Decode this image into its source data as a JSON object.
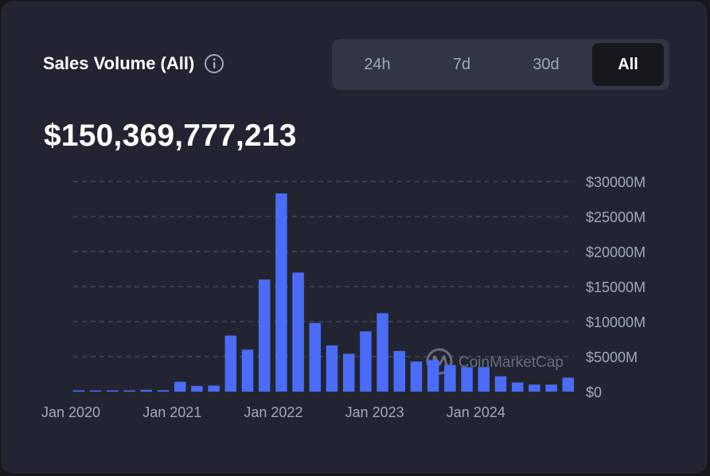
{
  "header": {
    "title": "Sales Volume (All)",
    "info_icon": "info-icon"
  },
  "tabs": [
    {
      "label": "24h",
      "active": false
    },
    {
      "label": "7d",
      "active": false
    },
    {
      "label": "30d",
      "active": false
    },
    {
      "label": "All",
      "active": true
    }
  ],
  "total_value": "$150,369,777,213",
  "watermark": "CoinMarketCap",
  "colors": {
    "bar": "#4a6cf7",
    "grid": "#4a4e5e",
    "card": "#222531"
  },
  "chart_data": {
    "type": "bar",
    "title": "Sales Volume (All)",
    "xlabel": "",
    "ylabel": "",
    "ylim": [
      0,
      30000
    ],
    "y_unit": "M",
    "y_ticks": [
      0,
      5000,
      10000,
      15000,
      20000,
      25000,
      30000
    ],
    "y_tick_labels": [
      "$0",
      "$5000M",
      "$10000M",
      "$15000M",
      "$20000M",
      "$25000M",
      "$30000M"
    ],
    "x_tick_labels": [
      {
        "label": "Jan 2020",
        "category_index": 0
      },
      {
        "label": "Jan 2021",
        "category_index": 6
      },
      {
        "label": "Jan 2022",
        "category_index": 12
      },
      {
        "label": "Jan 2023",
        "category_index": 18
      },
      {
        "label": "Jan 2024",
        "category_index": 24
      }
    ],
    "categories": [
      "2020-01",
      "2020-03",
      "2020-05",
      "2020-07",
      "2020-09",
      "2020-11",
      "2021-01",
      "2021-03",
      "2021-05",
      "2021-07",
      "2021-09",
      "2021-11",
      "2022-01",
      "2022-03",
      "2022-05",
      "2022-07",
      "2022-09",
      "2022-11",
      "2023-01",
      "2023-03",
      "2023-05",
      "2023-07",
      "2023-09",
      "2023-11",
      "2024-01",
      "2024-03",
      "2024-05",
      "2024-07",
      "2024-09",
      "2024-11"
    ],
    "values": [
      100,
      80,
      80,
      100,
      250,
      200,
      1400,
      800,
      850,
      8000,
      6000,
      16000,
      28300,
      17000,
      9800,
      6600,
      5400,
      8600,
      11200,
      5800,
      4300,
      4500,
      3800,
      3500,
      3500,
      2200,
      1300,
      1000,
      1000,
      2000
    ],
    "grid": true,
    "legend": "none"
  }
}
